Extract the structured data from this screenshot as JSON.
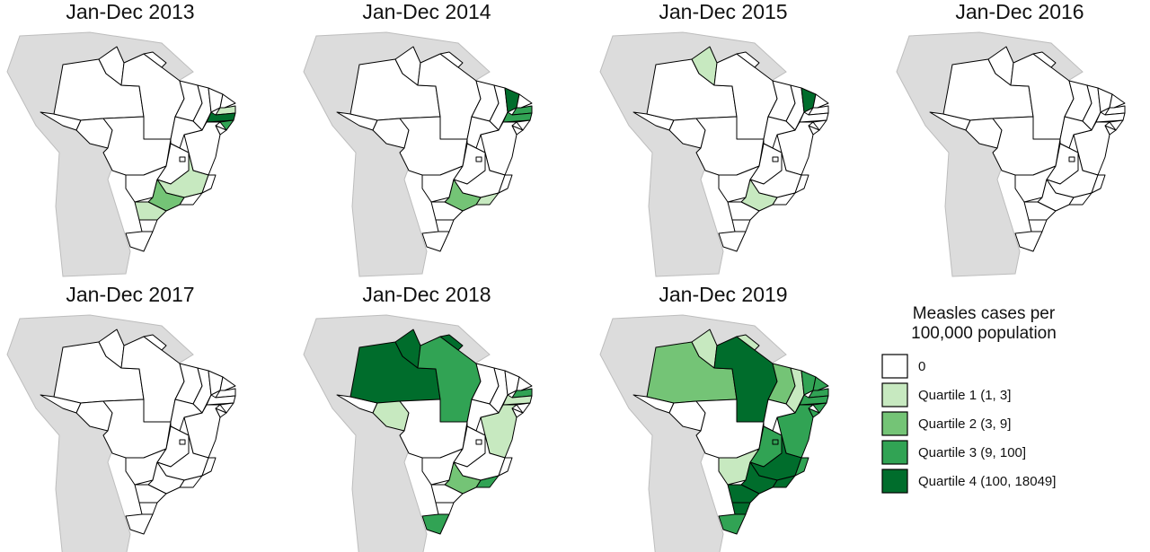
{
  "panels": [
    {
      "title": "Jan-Dec 2013",
      "classes": [
        0,
        0,
        0,
        0,
        0,
        0,
        0,
        0,
        0,
        0,
        0,
        1,
        4,
        3,
        0,
        0,
        0,
        0,
        0,
        0,
        1,
        0,
        0,
        2,
        1,
        0,
        0
      ]
    },
    {
      "title": "Jan-Dec 2014",
      "classes": [
        0,
        0,
        0,
        0,
        0,
        0,
        0,
        0,
        0,
        4,
        0,
        3,
        3,
        0,
        0,
        0,
        0,
        0,
        0,
        0,
        0,
        0,
        1,
        2,
        0,
        0,
        0
      ]
    },
    {
      "title": "Jan-Dec 2015",
      "classes": [
        0,
        0,
        1,
        0,
        0,
        0,
        0,
        0,
        0,
        4,
        0,
        0,
        0,
        0,
        0,
        0,
        0,
        0,
        0,
        0,
        0,
        0,
        0,
        1,
        0,
        0,
        0
      ]
    },
    {
      "title": "Jan-Dec 2016",
      "classes": [
        0,
        0,
        0,
        0,
        0,
        0,
        0,
        0,
        0,
        0,
        0,
        0,
        0,
        0,
        0,
        0,
        0,
        0,
        0,
        0,
        0,
        0,
        0,
        0,
        0,
        0,
        0
      ]
    },
    {
      "title": "Jan-Dec 2017",
      "classes": [
        0,
        0,
        0,
        0,
        0,
        0,
        0,
        0,
        0,
        0,
        0,
        0,
        0,
        0,
        0,
        0,
        0,
        0,
        0,
        0,
        0,
        0,
        0,
        0,
        0,
        0,
        0
      ]
    },
    {
      "title": "Jan-Dec 2018",
      "classes": [
        0,
        4,
        4,
        3,
        4,
        1,
        0,
        0,
        0,
        0,
        0,
        3,
        1,
        0,
        0,
        1,
        0,
        0,
        0,
        0,
        0,
        0,
        3,
        2,
        0,
        0,
        3
      ]
    },
    {
      "title": "Jan-Dec 2019",
      "classes": [
        0,
        2,
        1,
        4,
        1,
        0,
        0,
        2,
        1,
        3,
        3,
        3,
        3,
        3,
        3,
        3,
        0,
        3,
        3,
        1,
        4,
        3,
        4,
        4,
        4,
        4,
        3
      ]
    }
  ],
  "legend": {
    "title": [
      "Measles cases per",
      "100,000 population"
    ],
    "items": [
      {
        "label": "0",
        "color": "#ffffff"
      },
      {
        "label": "Quartile 1 (1, 3]",
        "color": "#c7e9c0"
      },
      {
        "label": "Quartile 2 (3, 9]",
        "color": "#74c476"
      },
      {
        "label": "Quartile 3 (9, 100]",
        "color": "#31a354"
      },
      {
        "label": "Quartile 4 (100, 18049]",
        "color": "#006d2c"
      }
    ]
  }
}
